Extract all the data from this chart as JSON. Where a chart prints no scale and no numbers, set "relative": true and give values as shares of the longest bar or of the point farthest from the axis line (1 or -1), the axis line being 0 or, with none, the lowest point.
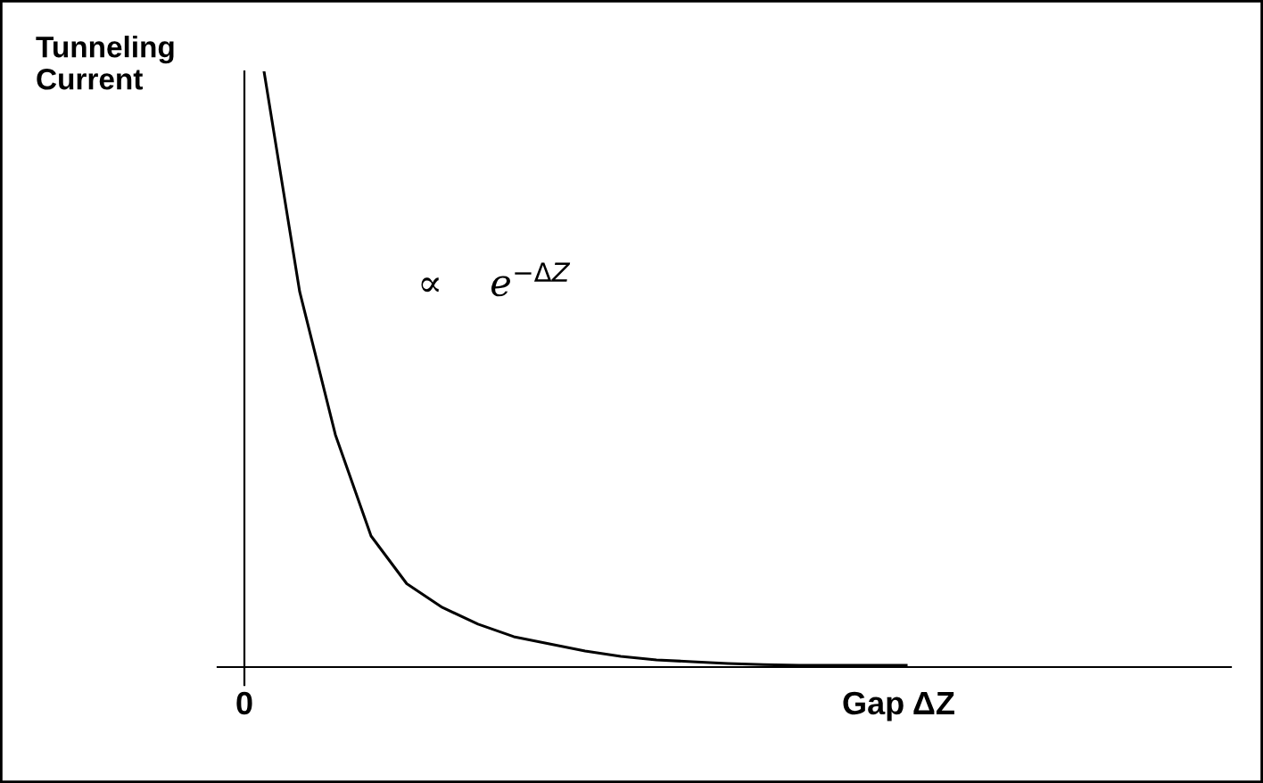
{
  "chart_data": {
    "type": "line",
    "relative": true,
    "xlabel": "Gap ΔZ",
    "ylabel": "Tunneling\nCurrent",
    "categories": [
      null,
      null,
      null,
      null,
      null,
      null,
      null,
      null,
      null,
      null,
      null,
      null,
      null,
      null,
      null,
      null,
      null,
      null,
      null,
      null,
      null,
      null,
      null,
      null,
      null,
      null,
      null,
      null
    ],
    "series": [
      {
        "color": "#000000",
        "values": [
          1.0,
          0.63,
          0.39,
          0.22,
          0.14,
          0.1,
          0.072,
          0.051,
          0.039,
          0.027,
          0.018,
          0.012,
          0.009,
          0.006,
          0.004,
          0.003,
          0.003,
          0.003,
          0.003,
          null,
          null,
          null,
          null,
          null,
          null,
          null,
          null,
          null
        ]
      }
    ],
    "annotations": [
      "0",
      "∝    e$^{−ΔZ}$"
    ],
    "marker": "none",
    "line_style": "solid",
    "legend": false
  }
}
